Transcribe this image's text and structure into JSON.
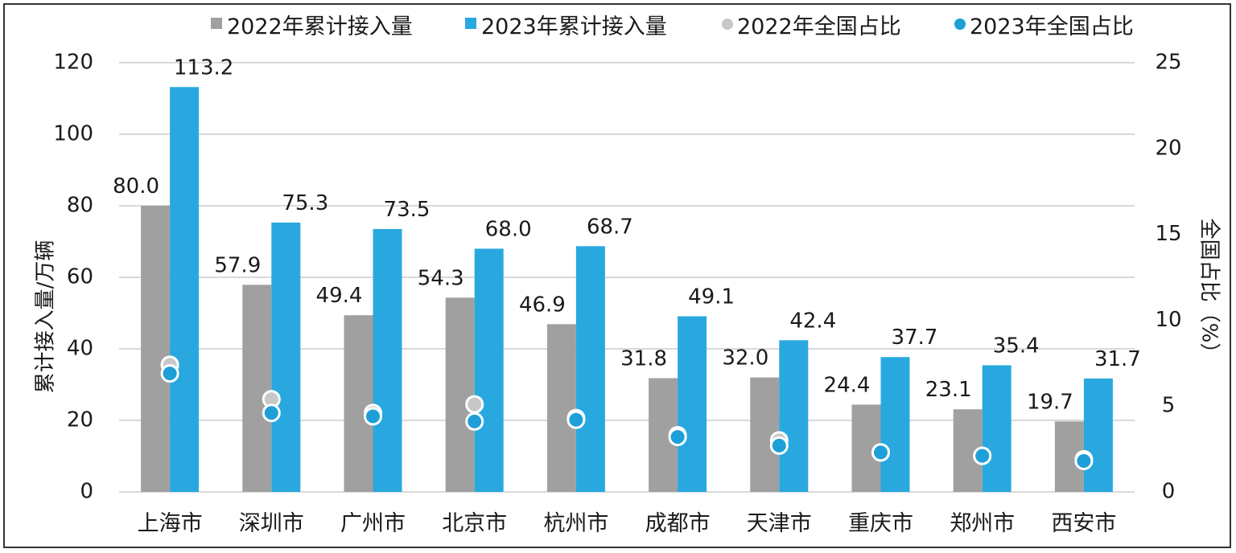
{
  "chart_data": {
    "type": "bar",
    "categories": [
      "上海市",
      "深圳市",
      "广州市",
      "北京市",
      "杭州市",
      "成都市",
      "天津市",
      "重庆市",
      "郑州市",
      "西安市"
    ],
    "series": [
      {
        "name": "2022年累计接入量",
        "kind": "bar",
        "axis": "left",
        "color": "#a0a0a0",
        "values": [
          80.0,
          57.9,
          49.4,
          54.3,
          46.9,
          31.8,
          32.0,
          24.4,
          23.1,
          19.7
        ],
        "labels": [
          "80.0",
          "57.9",
          "49.4",
          "54.3",
          "46.9",
          "31.8",
          "32.0",
          "24.4",
          "23.1",
          "19.7"
        ]
      },
      {
        "name": "2023年累计接入量",
        "kind": "bar",
        "axis": "left",
        "color": "#29a8e0",
        "values": [
          113.2,
          75.3,
          73.5,
          68.0,
          68.7,
          49.1,
          42.4,
          37.7,
          35.4,
          31.7
        ],
        "labels": [
          "113.2",
          "75.3",
          "73.5",
          "68.0",
          "68.7",
          "49.1",
          "42.4",
          "37.7",
          "35.4",
          "31.7"
        ]
      },
      {
        "name": "2022年全国占比",
        "kind": "marker",
        "axis": "right",
        "color": "#c8c8c8",
        "values": [
          7.4,
          5.4,
          4.6,
          5.1,
          4.3,
          3.3,
          3.0,
          2.3,
          2.1,
          1.9
        ]
      },
      {
        "name": "2023年全国占比",
        "kind": "marker",
        "axis": "right",
        "color": "#1e9fd8",
        "values": [
          6.9,
          4.6,
          4.4,
          4.1,
          4.2,
          3.2,
          2.7,
          2.3,
          2.1,
          1.8
        ]
      }
    ],
    "ylabel": "累计接入量/万辆",
    "y2label": "全国占比（%）",
    "ylim": [
      0,
      120
    ],
    "yticks": [
      "0",
      "20",
      "40",
      "60",
      "80",
      "100",
      "120"
    ],
    "y2lim": [
      0,
      25
    ],
    "y2ticks": [
      "0",
      "5",
      "10",
      "15",
      "20",
      "25"
    ],
    "grid": true,
    "legend_position": "top"
  }
}
